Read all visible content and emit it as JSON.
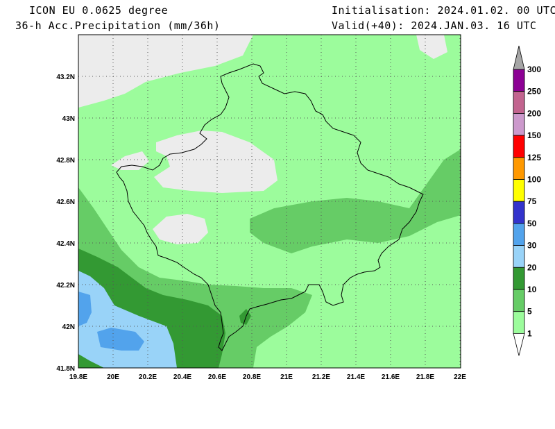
{
  "header": {
    "model": "ICON EU 0.0625 degree",
    "variable": "36-h Acc.Precipitation (mm/36h)",
    "init": "Initialisation: 2024.01.02. 00 UTC",
    "valid": "Valid(+40): 2024.JAN.03. 16 UTC"
  },
  "map": {
    "lon_labels": [
      "19.8E",
      "20E",
      "20.2E",
      "20.4E",
      "20.6E",
      "20.8E",
      "21E",
      "21.2E",
      "21.4E",
      "21.6E",
      "21.8E",
      "22E"
    ],
    "lat_labels": [
      "43.2N",
      "43N",
      "42.8N",
      "42.6N",
      "42.4N",
      "42.2N",
      "42N",
      "41.8N"
    ],
    "colors": {
      "grey": "#ececec",
      "light_green": "#9cfc9c",
      "mid_green": "#66cc66",
      "dark_green": "#339933",
      "light_blue": "#99d3f8",
      "blue": "#52a3ec"
    }
  },
  "colorbar": {
    "levels": [
      "300",
      "250",
      "200",
      "150",
      "125",
      "100",
      "75",
      "50",
      "30",
      "20",
      "10",
      "5",
      "1"
    ],
    "colors": [
      "#8c0094",
      "#c2648f",
      "#cc99cc",
      "#ff0000",
      "#ff9900",
      "#ffff00",
      "#3333cc",
      "#52a3ec",
      "#99d3f8",
      "#339933",
      "#66cc66",
      "#9cfc9c"
    ],
    "top_cap_color": "#a6a6a6",
    "bottom_cap_color": "#ffffff"
  }
}
